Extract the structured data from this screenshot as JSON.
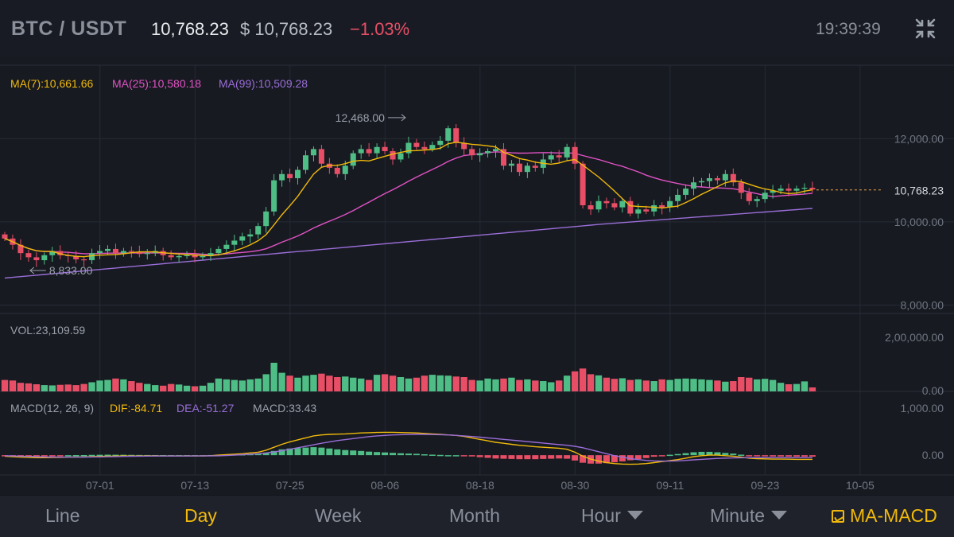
{
  "header": {
    "pair": "BTC / USDT",
    "last_price": "10,768.23",
    "usd_price": "$ 10,768.23",
    "change": "−1.03%",
    "time": "19:39:39"
  },
  "colors": {
    "up": "#4fbe86",
    "down": "#e84f67",
    "ma7": "#f0b90b",
    "ma25": "#e052c4",
    "ma99": "#9a6ed8",
    "accent": "#f0b90b"
  },
  "legend": {
    "ma7": "MA(7):10,661.66",
    "ma25": "MA(25):10,580.18",
    "ma99": "MA(99):10,509.28",
    "vol": "VOL:23,109.59",
    "macd_name": "MACD(12, 26, 9)",
    "dif": "DIF:-84.71",
    "dea": "DEA:-51.27",
    "macd": "MACD:33.43"
  },
  "chart_data": {
    "type": "candlestick",
    "price_axis": [
      "12,000.00",
      "10,000.00",
      "8,000.00"
    ],
    "price_ticks": [
      12000,
      10000,
      8000
    ],
    "price_range": [
      7800,
      13000
    ],
    "current_price_label": "10,768.23",
    "current_price": 10768.23,
    "high_label": "12,468.00",
    "high_value": 12468,
    "high_index": 51,
    "low_label": "8,833.00",
    "low_value": 8833,
    "low_index": 3,
    "volume_axis": [
      "2,00,000.00",
      "0.00"
    ],
    "volume_max": 200000,
    "macd_axis": [
      "1,000.00",
      "0.00"
    ],
    "macd_range": [
      -400,
      1000
    ],
    "date_labels": [
      "07-01",
      "07-13",
      "07-25",
      "08-06",
      "08-18",
      "08-30",
      "09-11",
      "09-23",
      "10-05"
    ],
    "first_date_index": 6,
    "closes": [
      9600,
      9450,
      9250,
      9150,
      9080,
      9200,
      9300,
      9200,
      9180,
      9100,
      9080,
      9250,
      9300,
      9350,
      9250,
      9300,
      9280,
      9230,
      9250,
      9300,
      9200,
      9150,
      9180,
      9200,
      9150,
      9180,
      9250,
      9350,
      9450,
      9550,
      9650,
      9700,
      9900,
      10250,
      11000,
      11150,
      11050,
      11250,
      11600,
      11750,
      11400,
      11300,
      11150,
      11350,
      11650,
      11750,
      11650,
      11800,
      11700,
      11500,
      11650,
      11900,
      11800,
      11750,
      11850,
      11950,
      12250,
      11900,
      11750,
      11600,
      11650,
      11700,
      11750,
      11350,
      11400,
      11200,
      11350,
      11300,
      11500,
      11600,
      11550,
      11800,
      11400,
      10400,
      10300,
      10500,
      10450,
      10350,
      10500,
      10200,
      10300,
      10250,
      10400,
      10350,
      10500,
      10650,
      10800,
      10950,
      10980,
      11050,
      11000,
      11150,
      10950,
      10700,
      10500,
      10550,
      10700,
      10750,
      10800,
      10750,
      10800,
      10820,
      10780
    ],
    "volumes": [
      40000,
      38000,
      30000,
      28000,
      25000,
      22000,
      21000,
      23000,
      24000,
      22000,
      26000,
      32000,
      38000,
      40000,
      45000,
      42000,
      36000,
      30000,
      26000,
      22000,
      20000,
      26000,
      24000,
      20000,
      18000,
      20000,
      30000,
      45000,
      42000,
      40000,
      38000,
      42000,
      45000,
      60000,
      100000,
      65000,
      55000,
      48000,
      55000,
      58000,
      62000,
      55000,
      50000,
      52000,
      48000,
      45000,
      40000,
      58000,
      60000,
      55000,
      50000,
      45000,
      48000,
      55000,
      58000,
      56000,
      55000,
      52000,
      50000,
      40000,
      38000,
      45000,
      42000,
      45000,
      48000,
      40000,
      42000,
      38000,
      36000,
      32000,
      38000,
      55000,
      70000,
      80000,
      60000,
      56000,
      48000,
      44000,
      46000,
      40000,
      42000,
      38000,
      36000,
      42000,
      40000,
      44000,
      45000,
      44000,
      42000,
      40000,
      38000,
      34000,
      36000,
      50000,
      48000,
      42000,
      44000,
      40000,
      30000,
      25000,
      26000,
      35000,
      14000
    ],
    "volume_direction": [
      0,
      0,
      0,
      0,
      0,
      1,
      1,
      0,
      0,
      0,
      0,
      1,
      1,
      1,
      0,
      1,
      0,
      0,
      1,
      1,
      0,
      0,
      1,
      1,
      0,
      1,
      1,
      1,
      1,
      1,
      1,
      1,
      1,
      1,
      1,
      1,
      0,
      1,
      1,
      1,
      0,
      0,
      0,
      1,
      1,
      1,
      0,
      1,
      0,
      0,
      1,
      1,
      0,
      0,
      1,
      1,
      1,
      0,
      0,
      0,
      1,
      1,
      1,
      0,
      1,
      0,
      1,
      0,
      1,
      1,
      0,
      1,
      0,
      0,
      0,
      1,
      0,
      0,
      1,
      0,
      1,
      0,
      1,
      0,
      1,
      1,
      1,
      1,
      1,
      1,
      0,
      1,
      0,
      0,
      0,
      1,
      1,
      1,
      1,
      0,
      1,
      1,
      0
    ],
    "ma7_label": "MA(7)",
    "ma25_label": "MA(25)",
    "ma99_label": "MA(99)",
    "macd_dif": [
      -20,
      -30,
      -40,
      -45,
      -50,
      -50,
      -48,
      -45,
      -40,
      -38,
      -36,
      -30,
      -25,
      -20,
      -18,
      -16,
      -15,
      -15,
      -14,
      -14,
      -15,
      -16,
      -16,
      -16,
      -16,
      -15,
      -10,
      0,
      10,
      20,
      30,
      45,
      60,
      100,
      160,
      220,
      270,
      310,
      350,
      390,
      410,
      420,
      425,
      430,
      440,
      450,
      455,
      460,
      462,
      462,
      458,
      454,
      450,
      440,
      430,
      420,
      410,
      400,
      380,
      350,
      320,
      290,
      260,
      240,
      220,
      200,
      185,
      170,
      160,
      150,
      140,
      120,
      60,
      -20,
      -80,
      -120,
      -150,
      -170,
      -180,
      -185,
      -180,
      -170,
      -150,
      -130,
      -110,
      -90,
      -60,
      -30,
      -10,
      0,
      0,
      -10,
      -20,
      -40,
      -60,
      -70,
      -75,
      -80,
      -80,
      -82,
      -84,
      -85,
      -84.71
    ],
    "macd_dea": [
      -10,
      -15,
      -20,
      -25,
      -30,
      -35,
      -38,
      -40,
      -40,
      -40,
      -39,
      -37,
      -34,
      -31,
      -28,
      -25,
      -22,
      -20,
      -18,
      -17,
      -17,
      -17,
      -17,
      -17,
      -16,
      -15,
      -14,
      -12,
      -8,
      0,
      10,
      20,
      30,
      45,
      65,
      90,
      120,
      150,
      180,
      210,
      240,
      270,
      295,
      315,
      335,
      355,
      375,
      390,
      400,
      410,
      415,
      418,
      420,
      420,
      418,
      414,
      410,
      400,
      390,
      378,
      365,
      350,
      335,
      320,
      305,
      290,
      275,
      260,
      245,
      230,
      215,
      200,
      180,
      150,
      110,
      70,
      30,
      -10,
      -40,
      -70,
      -90,
      -105,
      -115,
      -120,
      -120,
      -115,
      -105,
      -95,
      -85,
      -75,
      -65,
      -60,
      -55,
      -52,
      -51,
      -50,
      -50,
      -50,
      -50,
      -50,
      -51,
      -51,
      -51.27
    ]
  },
  "tabs": {
    "line": "Line",
    "day": "Day",
    "week": "Week",
    "month": "Month",
    "hour": "Hour",
    "minute": "Minute",
    "indicator": "MA-MACD"
  }
}
